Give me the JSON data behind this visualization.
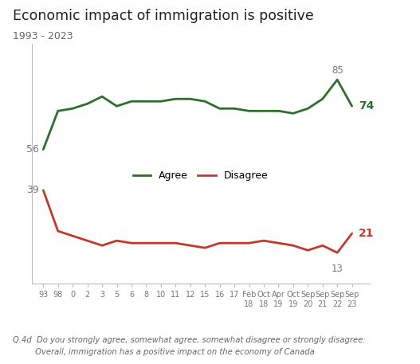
{
  "title": "Economic impact of immigration is positive",
  "subtitle": "1993 - 2023",
  "x_labels": [
    "93",
    "98",
    "0",
    "2",
    "3",
    "5",
    "6",
    "8",
    "10",
    "11",
    "12",
    "15",
    "16",
    "17",
    "Feb\n18",
    "Oct\n18",
    "Apr\n19",
    "Oct\n19",
    "Sep\n20",
    "Sep\n21",
    "Sep\n22",
    "Sep\n23"
  ],
  "agree": [
    56,
    72,
    73,
    75,
    78,
    74,
    76,
    76,
    76,
    77,
    77,
    76,
    73,
    73,
    72,
    72,
    72,
    71,
    73,
    77,
    85,
    74
  ],
  "disagree": [
    39,
    22,
    20,
    18,
    16,
    18,
    17,
    17,
    17,
    17,
    16,
    15,
    17,
    17,
    17,
    18,
    17,
    16,
    14,
    16,
    13,
    21
  ],
  "agree_color": "#2d6e2d",
  "disagree_color": "#c0392b",
  "agree_label": "Agree",
  "disagree_label": "Disagree",
  "agree_start_label": "56",
  "agree_end_label_peak": "85",
  "agree_end_label_last": "74",
  "disagree_start_label": "39",
  "disagree_end_label_min": "13",
  "disagree_end_label_last": "21",
  "footnote_line1": "Q.4d  Do you strongly agree, somewhat agree, somewhat disagree or strongly disagree:",
  "footnote_line2": "         Overall, immigration has a positive impact on the economy of Canada",
  "bg_color": "#ffffff",
  "plot_bg_color": "#ffffff",
  "ylim_min": 0,
  "ylim_max": 100,
  "spine_color": "#bbbbbb",
  "tick_color": "#777777",
  "title_color": "#222222",
  "subtitle_color": "#666666",
  "footnote_color": "#666666"
}
